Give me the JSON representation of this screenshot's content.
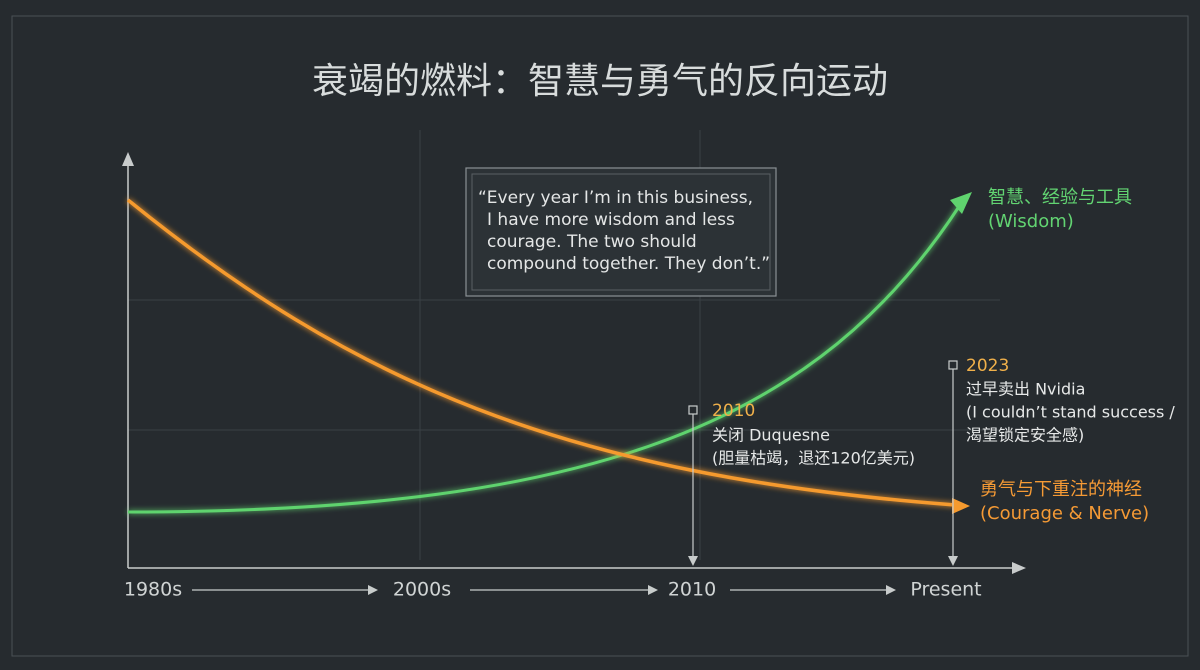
{
  "title": "衰竭的燃料：智慧与勇气的反向运动",
  "quote": [
    "“Every year I’m in this business,",
    "I have more wisdom and less",
    "courage. The two should",
    "compound together. They don’t.”"
  ],
  "x_axis": {
    "labels": [
      "1980s",
      "2000s",
      "2010",
      "Present"
    ]
  },
  "curves": [
    {
      "label": [
        "智慧、经验与工具",
        "(Wisdom)"
      ]
    },
    {
      "label": [
        "勇气与下重注的神经",
        "(Courage & Nerve)"
      ]
    }
  ],
  "events": [
    {
      "year": "2010",
      "lines": [
        "关闭 Duquesne",
        "(胆量枯竭，退还120亿美元)"
      ]
    },
    {
      "year": "2023",
      "lines": [
        "过早卖出 Nvidia",
        "(I couldn’t stand success /",
        "渴望锁定安全感)"
      ]
    }
  ]
}
